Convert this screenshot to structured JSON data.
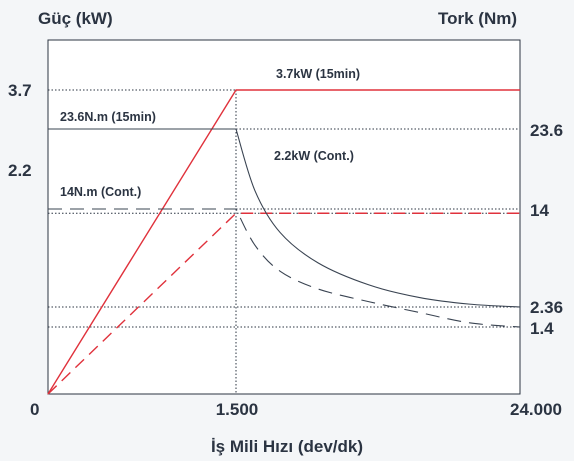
{
  "chart_data": {
    "type": "line",
    "title": "",
    "xlabel": "İş Mili Hızı (dev/dk)",
    "left_axis_label": "Güç (kW)",
    "right_axis_label": "Tork (Nm)",
    "x_ticks": [
      "0",
      "1.500",
      "24.000"
    ],
    "left_ticks": [
      "3.7",
      "2.2"
    ],
    "right_ticks": [
      "23.6",
      "14",
      "2.36",
      "1.4"
    ],
    "x_breakpoints": [
      0,
      1500,
      24000
    ],
    "series": [
      {
        "name": "3.7kW (15min)",
        "axis": "left",
        "color": "#e0323c",
        "dashed": false,
        "points": [
          [
            0,
            0
          ],
          [
            1500,
            3.7
          ],
          [
            24000,
            3.7
          ]
        ]
      },
      {
        "name": "2.2kW (Cont.)",
        "axis": "left",
        "color": "#e0323c",
        "dashed": true,
        "points": [
          [
            0,
            0
          ],
          [
            1500,
            2.2
          ],
          [
            24000,
            2.2
          ]
        ]
      },
      {
        "name": "23.6N.m (15min)",
        "axis": "right",
        "color": "#3a4452",
        "dashed": false,
        "points": [
          [
            0,
            23.6
          ],
          [
            1500,
            23.6
          ],
          [
            3000,
            16.2
          ],
          [
            5000,
            11.2
          ],
          [
            8000,
            7.6
          ],
          [
            12000,
            5.0
          ],
          [
            16000,
            3.5
          ],
          [
            20000,
            2.7
          ],
          [
            24000,
            2.36
          ]
        ]
      },
      {
        "name": "14N.m (Cont.)",
        "axis": "right",
        "color": "#3a4452",
        "dashed": true,
        "points": [
          [
            0,
            14
          ],
          [
            1500,
            14
          ],
          [
            3000,
            9.7
          ],
          [
            5000,
            6.6
          ],
          [
            8000,
            4.5
          ],
          [
            12000,
            3.0
          ],
          [
            16000,
            2.1
          ],
          [
            20000,
            1.6
          ],
          [
            24000,
            1.4
          ]
        ]
      }
    ],
    "grid": false
  }
}
